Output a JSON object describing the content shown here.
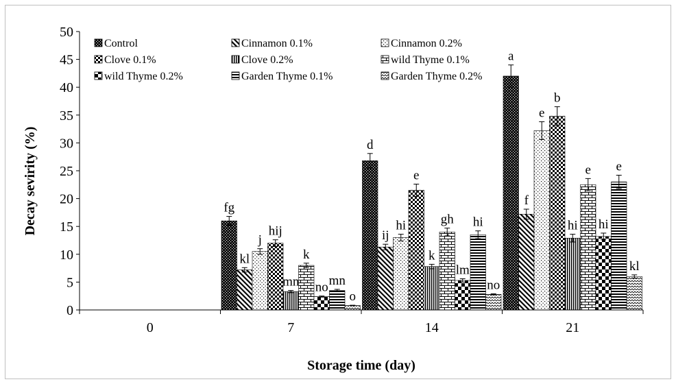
{
  "chart_data": {
    "type": "bar",
    "title": "",
    "xlabel": "Storage time (day)",
    "ylabel": "Decay sevirity (%)",
    "ylim": [
      0,
      50
    ],
    "yticks": [
      0,
      5,
      10,
      15,
      20,
      25,
      30,
      35,
      40,
      45,
      50
    ],
    "grid": false,
    "legend_position": "top",
    "categories": [
      "0",
      "7",
      "14",
      "21"
    ],
    "series": [
      {
        "name": "Control",
        "values": [
          0,
          16.0,
          26.8,
          42.0
        ],
        "errors": [
          0,
          0.8,
          1.3,
          2.0
        ],
        "labels": [
          "",
          "fg",
          "d",
          "a"
        ],
        "pattern": "dense-dots"
      },
      {
        "name": "Cinnamon 0.1%",
        "values": [
          0,
          7.2,
          11.3,
          17.2
        ],
        "errors": [
          0,
          0.4,
          0.5,
          0.9
        ],
        "labels": [
          "",
          "kl",
          "ij",
          "f"
        ],
        "pattern": "diag-lines"
      },
      {
        "name": "Cinnamon 0.2%",
        "values": [
          0,
          10.5,
          13.0,
          32.2
        ],
        "errors": [
          0,
          0.5,
          0.6,
          1.6
        ],
        "labels": [
          "",
          "j",
          "hi",
          "e"
        ],
        "pattern": "sparse-dots"
      },
      {
        "name": "Clove 0.1%",
        "values": [
          0,
          12.0,
          21.5,
          34.8
        ],
        "errors": [
          0,
          0.6,
          1.1,
          1.7
        ],
        "labels": [
          "",
          "hij",
          "e",
          "b"
        ],
        "pattern": "checker"
      },
      {
        "name": "Clove 0.2%",
        "values": [
          0,
          3.3,
          7.8,
          12.9
        ],
        "errors": [
          0,
          0.2,
          0.4,
          0.7
        ],
        "labels": [
          "",
          "mn",
          "k",
          "hi"
        ],
        "pattern": "vert-lines"
      },
      {
        "name": "wild Thyme 0.1%",
        "values": [
          0,
          8.0,
          14.0,
          22.5
        ],
        "errors": [
          0,
          0.4,
          0.7,
          1.1
        ],
        "labels": [
          "",
          "k",
          "gh",
          "e"
        ],
        "pattern": "brick"
      },
      {
        "name": "wild Thyme 0.2%",
        "values": [
          0,
          2.4,
          5.3,
          13.2
        ],
        "errors": [
          0,
          0.1,
          0.3,
          0.6
        ],
        "labels": [
          "",
          "no",
          "lm",
          "hi"
        ],
        "pattern": "large-checker"
      },
      {
        "name": "Garden Thyme 0.1%",
        "values": [
          0,
          3.5,
          13.5,
          23.0
        ],
        "errors": [
          0,
          0.2,
          0.7,
          1.2
        ],
        "labels": [
          "",
          "mn",
          "hi",
          "e"
        ],
        "pattern": "horiz-lines"
      },
      {
        "name": "Garden Thyme 0.2%",
        "values": [
          0,
          0.8,
          2.8,
          6.0
        ],
        "errors": [
          0,
          0.05,
          0.1,
          0.3
        ],
        "labels": [
          "",
          "o",
          "no",
          "kl"
        ],
        "pattern": "wave"
      }
    ]
  }
}
